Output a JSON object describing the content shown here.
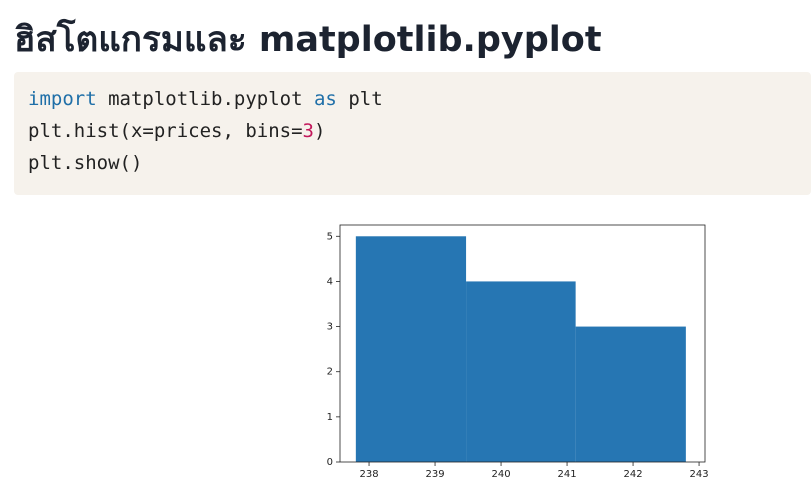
{
  "header": {
    "title": "ฮิสโตแกรมและ matplotlib.pyplot"
  },
  "code": {
    "lines": [
      [
        {
          "text": "import",
          "kind": "keyword"
        },
        {
          "text": " matplotlib.pyplot ",
          "kind": "plain"
        },
        {
          "text": "as",
          "kind": "keyword"
        },
        {
          "text": " plt",
          "kind": "plain"
        }
      ],
      [
        {
          "text": "plt.hist(x=prices, bins=",
          "kind": "plain"
        },
        {
          "text": "3",
          "kind": "number"
        },
        {
          "text": ")",
          "kind": "plain"
        }
      ],
      [
        {
          "text": "plt.show()",
          "kind": "plain"
        }
      ]
    ],
    "colors": {
      "keyword": "#1f6fa8",
      "plain": "#222222",
      "number": "#c2185b"
    }
  },
  "chart_data": {
    "type": "histogram",
    "bins": [
      237.8,
      239.47,
      241.13,
      242.8
    ],
    "values": [
      5,
      4,
      3
    ],
    "color": "#2676b3",
    "xlim": [
      237.56,
      243.09
    ],
    "ylim": [
      0,
      5.25
    ],
    "xticks": [
      238,
      239,
      240,
      241,
      242,
      243
    ],
    "yticks": [
      0,
      1,
      2,
      3,
      4,
      5
    ]
  }
}
